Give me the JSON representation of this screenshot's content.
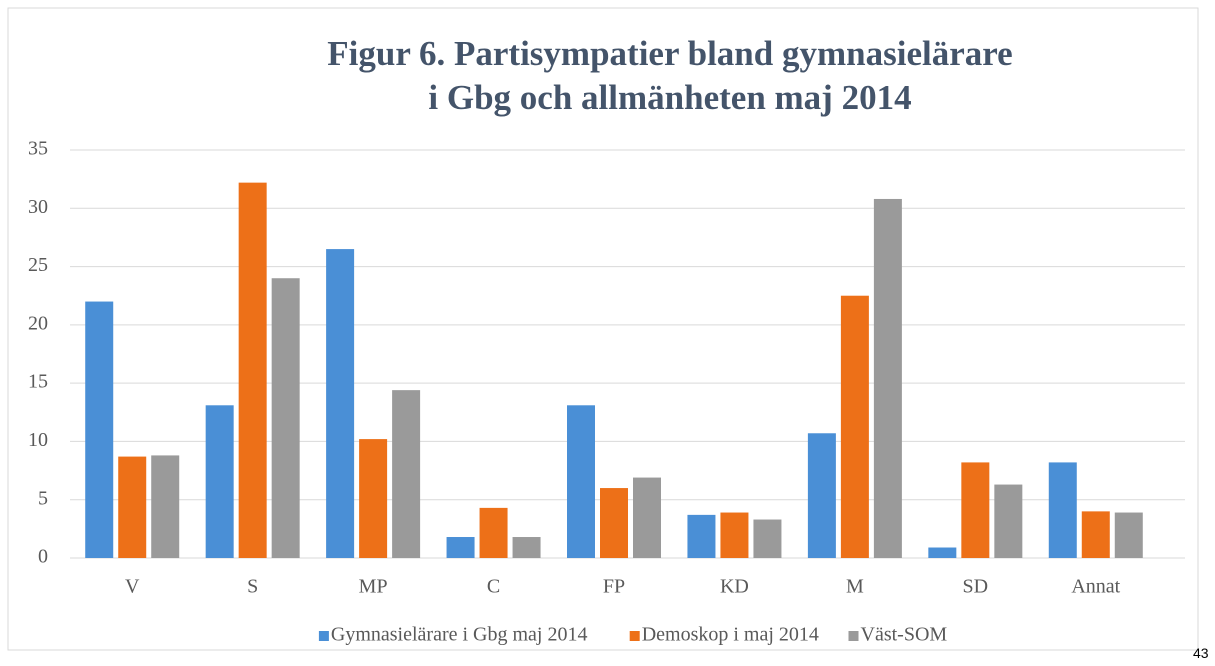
{
  "chart_data": {
    "type": "bar",
    "title": "Figur 6. Partisympatier bland gymnasielärare i Gbg och allmänheten maj 2014",
    "categories": [
      "V",
      "S",
      "MP",
      "C",
      "FP",
      "KD",
      "M",
      "SD",
      "Annat"
    ],
    "series": [
      {
        "name": "Gymnasielärare i Gbg maj 2014",
        "color": "#4a8fd6",
        "values": [
          22,
          13.1,
          26.5,
          1.8,
          13.1,
          3.7,
          10.7,
          0.9,
          8.2
        ]
      },
      {
        "name": "Demoskop i maj 2014",
        "color": "#ed7018",
        "values": [
          8.7,
          32.2,
          10.2,
          4.3,
          6,
          3.9,
          22.5,
          8.2,
          4
        ]
      },
      {
        "name": "Väst-SOM",
        "color": "#9a9a9a",
        "values": [
          8.8,
          24,
          14.4,
          1.8,
          6.9,
          3.3,
          30.8,
          6.3,
          3.9
        ]
      }
    ],
    "ylim": [
      0,
      35
    ],
    "yticks": [
      0,
      5,
      10,
      15,
      20,
      25,
      30,
      35
    ],
    "grid": true,
    "legend": "bottom"
  },
  "page_number": "43"
}
